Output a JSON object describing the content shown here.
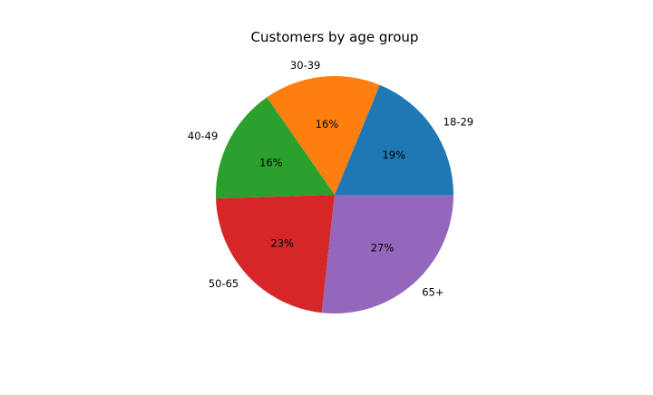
{
  "chart_data": {
    "type": "pie",
    "title": "Customers by age group",
    "categories": [
      "18-29",
      "30-39",
      "40-49",
      "50-65",
      "65+"
    ],
    "values": [
      19,
      16,
      16,
      23,
      27
    ],
    "value_format": "percent",
    "start_angle_deg": 0,
    "direction": "counterclockwise",
    "colors": [
      "#1f77b4",
      "#ff7f0e",
      "#2ca02c",
      "#d62728",
      "#9467bd"
    ],
    "legend": "none"
  }
}
